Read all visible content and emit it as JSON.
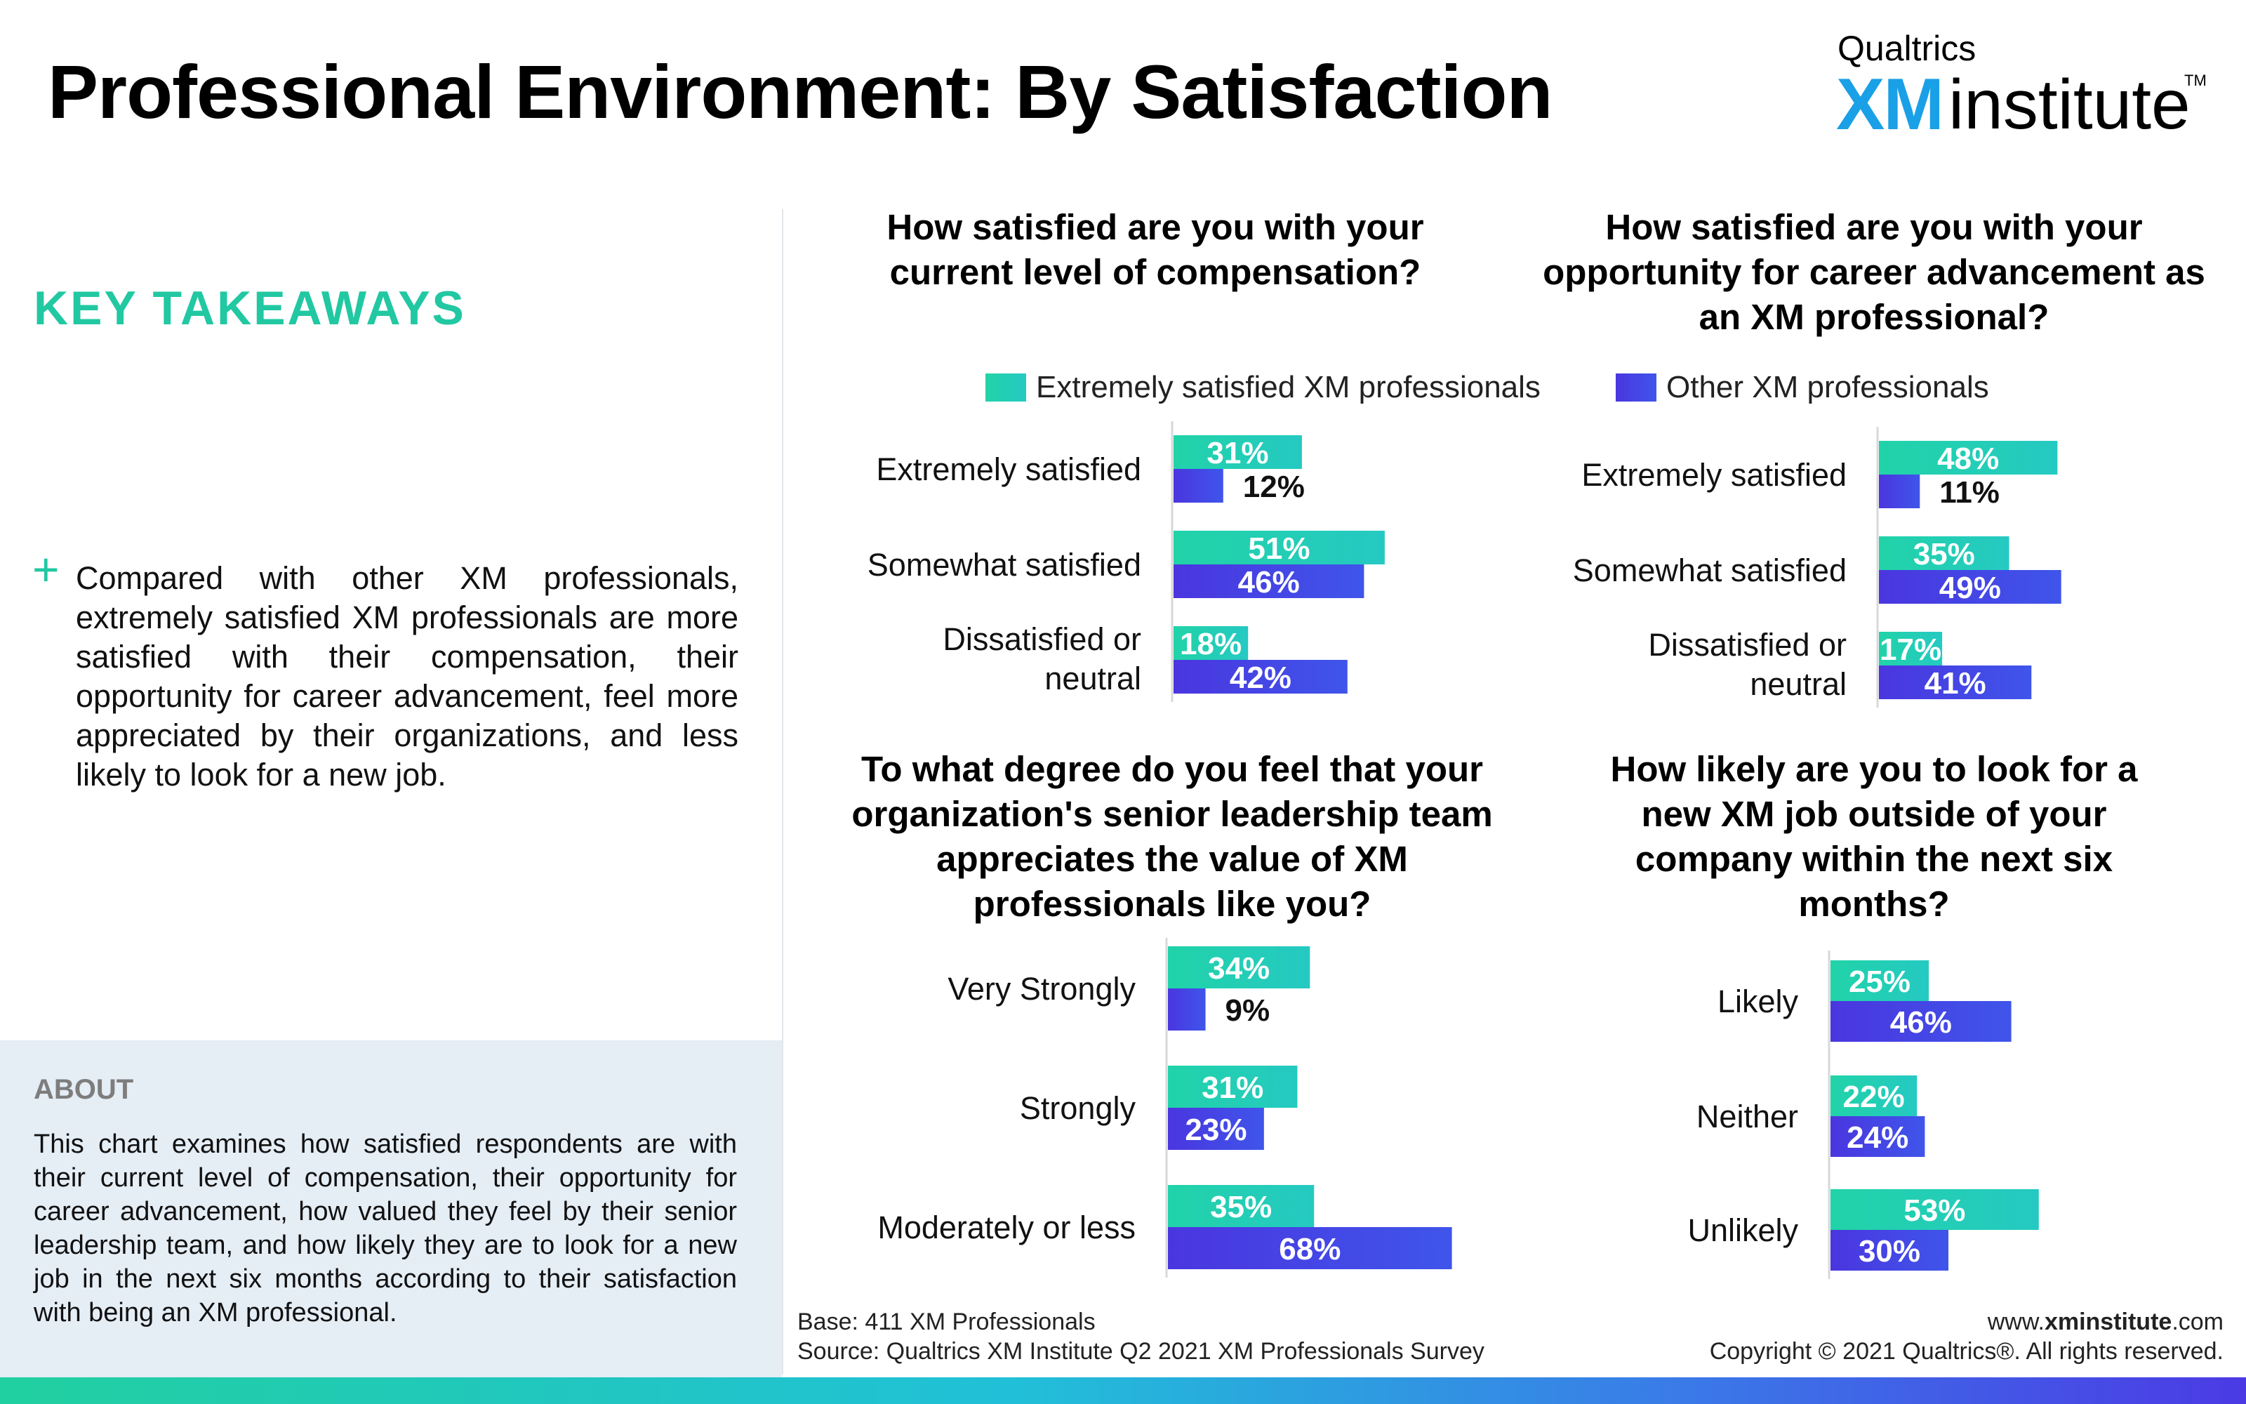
{
  "header": {
    "title": "Professional Environment: By Satisfaction",
    "logo_top": "Qualtrics",
    "logo_xm": "XM",
    "logo_institute": "institute",
    "logo_tm": "TM"
  },
  "sidebar": {
    "takeaways_title": "KEY TAKEAWAYS",
    "bullet_symbol": "+",
    "bullet_text": "Compared with other XM professionals, extremely satisfied XM professionals are more satisfied with their compensation, their opportunity for career advancement, feel more appreciated by their organizations, and less likely to look for a new job.",
    "about_title": "ABOUT",
    "about_text": "This chart examines how satisfied respondents are with their current level of compensation, their opportunity for career advancement, how valued they feel by their senior leadership team, and how likely they are to look for a new job in the next six months according to their satisfaction with being an XM professional."
  },
  "legend": {
    "series1": "Extremely satisfied XM professionals",
    "series2": "Other XM professionals"
  },
  "colors": {
    "series1": "#21d3a8",
    "series1_end": "#25c9c2",
    "series2": "#4a36df",
    "series2_end": "#3f55ea",
    "accent": "#21c8a2"
  },
  "footer": {
    "base": "Base: 411 XM Professionals",
    "source": "Source: Qualtrics XM Institute Q2 2021 XM Professionals Survey",
    "website_pre": "www.",
    "website_bold": "xminstitute",
    "website_post": ".com",
    "copyright": "Copyright © 2021 Qualtrics®. All rights reserved."
  },
  "chart_data": [
    {
      "type": "bar",
      "orientation": "horizontal",
      "title": "How satisfied are you with your current level of compensation?",
      "categories": [
        "Extremely satisfied",
        "Somewhat satisfied",
        "Dissatisfied or neutral"
      ],
      "series": [
        {
          "name": "Extremely satisfied XM professionals",
          "values": [
            31,
            51,
            18
          ],
          "labels": [
            "31%",
            "51%",
            "18%"
          ]
        },
        {
          "name": "Other XM professionals",
          "values": [
            12,
            46,
            42
          ],
          "labels": [
            "12%",
            "46%",
            "42%"
          ]
        }
      ],
      "unit": "%"
    },
    {
      "type": "bar",
      "orientation": "horizontal",
      "title": "How satisfied are you with your opportunity for career advancement as an XM professional?",
      "categories": [
        "Extremely satisfied",
        "Somewhat satisfied",
        "Dissatisfied or neutral"
      ],
      "series": [
        {
          "name": "Extremely satisfied XM professionals",
          "values": [
            48,
            35,
            17
          ],
          "labels": [
            "48%",
            "35%",
            "17%"
          ]
        },
        {
          "name": "Other XM professionals",
          "values": [
            11,
            49,
            41
          ],
          "labels": [
            "11%",
            "49%",
            "41%"
          ]
        }
      ],
      "unit": "%"
    },
    {
      "type": "bar",
      "orientation": "horizontal",
      "title": "To what degree do you feel that your organization's senior leadership team appreciates the value of XM professionals like you?",
      "categories": [
        "Very Strongly",
        "Strongly",
        "Moderately or less"
      ],
      "series": [
        {
          "name": "Extremely satisfied XM professionals",
          "values": [
            34,
            31,
            35
          ],
          "labels": [
            "34%",
            "31%",
            "35%"
          ]
        },
        {
          "name": "Other XM professionals",
          "values": [
            9,
            23,
            68
          ],
          "labels": [
            "9%",
            "23%",
            "68%"
          ]
        }
      ],
      "unit": "%"
    },
    {
      "type": "bar",
      "orientation": "horizontal",
      "title": "How likely are you to look for a new XM job outside of your company within the next six months?",
      "categories": [
        "Likely",
        "Neither",
        "Unlikely"
      ],
      "series": [
        {
          "name": "Extremely satisfied XM professionals",
          "values": [
            25,
            22,
            53
          ],
          "labels": [
            "25%",
            "22%",
            "53%"
          ]
        },
        {
          "name": "Other XM professionals",
          "values": [
            46,
            24,
            30
          ],
          "labels": [
            "46%",
            "24%",
            "30%"
          ]
        }
      ],
      "unit": "%"
    }
  ]
}
